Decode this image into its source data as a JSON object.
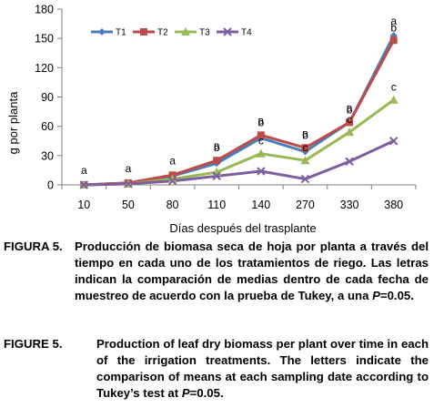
{
  "chart_data": {
    "type": "line",
    "xlabel": "Días después del trasplante",
    "ylabel": "g por planta",
    "categories": [
      "10",
      "50",
      "80",
      "110",
      "140",
      "270",
      "330",
      "380"
    ],
    "ylim": [
      0,
      180
    ],
    "yticks": [
      0,
      30,
      60,
      90,
      120,
      150,
      180
    ],
    "grid": false,
    "legend_position": "top-left",
    "series": [
      {
        "name": "T1",
        "color": "#4a7ebb",
        "marker": "diamond",
        "values": [
          0,
          2,
          9,
          22,
          48,
          34,
          64,
          153
        ]
      },
      {
        "name": "T2",
        "color": "#be4b48",
        "marker": "square",
        "values": [
          0,
          2,
          10,
          25,
          51,
          38,
          64,
          148
        ]
      },
      {
        "name": "T3",
        "color": "#98b954",
        "marker": "triangle",
        "values": [
          0,
          1,
          6,
          13,
          32,
          25,
          54,
          87
        ]
      },
      {
        "name": "T4",
        "color": "#7d5fa0",
        "marker": "x",
        "values": [
          0,
          1,
          4,
          9,
          14,
          6,
          24,
          45
        ]
      }
    ],
    "annotations": [
      {
        "category": "10",
        "labels": [
          "a"
        ]
      },
      {
        "category": "50",
        "labels": [
          "a"
        ]
      },
      {
        "category": "80",
        "labels": [
          "a"
        ]
      },
      {
        "category": "110",
        "labels": [
          "a",
          "b"
        ]
      },
      {
        "category": "140",
        "labels": [
          "a",
          "b",
          "c"
        ]
      },
      {
        "category": "270",
        "labels": [
          "a",
          "b",
          "c"
        ]
      },
      {
        "category": "330",
        "labels": [
          "a",
          "b",
          "c"
        ]
      },
      {
        "category": "380",
        "labels": [
          "a",
          "b",
          "c"
        ]
      }
    ]
  },
  "captions": {
    "es": {
      "label": "FIGURA 5.",
      "text": "Producción de biomasa seca de hoja por planta a través del tiempo en cada uno de los tratamientos de riego. Las letras indican la comparación de medias dentro de cada fecha de muestreo de acuerdo con la prueba de Tukey, a una P=0.05."
    },
    "en": {
      "label": "FIGURE 5.",
      "text": "Production of leaf dry biomass per plant over time in each of the irrigation treatments. The letters indicate the comparison of means at each sampling date according to Tukey’s test at P=0.05."
    }
  }
}
